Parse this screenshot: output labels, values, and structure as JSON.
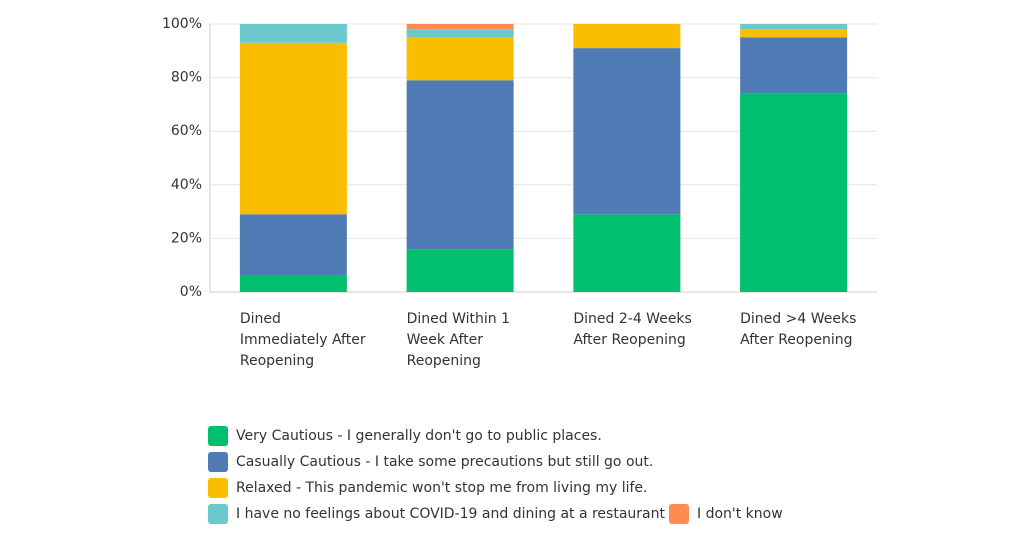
{
  "chart_data": {
    "type": "stacked_bar",
    "categories": [
      "Dined Immediately After Reopening",
      "Dined Within 1 Week After Reopening",
      "Dined 2-4 Weeks After Reopening",
      "Dined >4 Weeks After Reopening"
    ],
    "series": [
      {
        "name": "Very Cautious - I generally don't go to public places.",
        "color": "#00bf6f",
        "values": [
          6,
          16,
          29,
          74
        ]
      },
      {
        "name": "Casually Cautious - I take some precautions but still go out.",
        "color": "#507cb6",
        "values": [
          23,
          63,
          62,
          21
        ]
      },
      {
        "name": "Relaxed - This pandemic won't stop me from living my life.",
        "color": "#f9be00",
        "values": [
          64,
          16,
          9,
          3
        ]
      },
      {
        "name": "I have no feelings about COVID-19 and dining at a restaurant",
        "color": "#6bc8cd",
        "values": [
          7,
          3,
          0,
          2
        ]
      },
      {
        "name": "I don't know",
        "color": "#ff8b4f",
        "values": [
          0,
          2,
          0,
          0
        ]
      }
    ],
    "ylim": [
      0,
      100
    ],
    "yticks": [
      {
        "value": 0,
        "label": "0%"
      },
      {
        "value": 20,
        "label": "20%"
      },
      {
        "value": 40,
        "label": "40%"
      },
      {
        "value": 60,
        "label": "60%"
      },
      {
        "value": 80,
        "label": "80%"
      },
      {
        "value": 100,
        "label": "100%"
      }
    ],
    "grid": true
  }
}
